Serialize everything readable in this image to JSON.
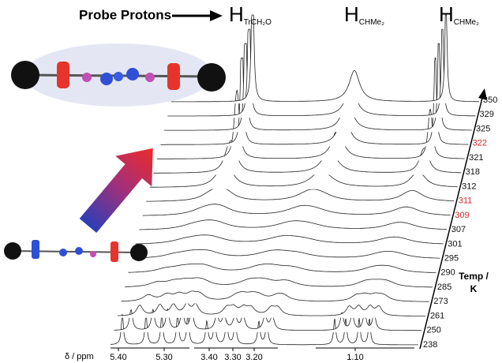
{
  "header": {
    "label": "Probe Protons",
    "peaks": [
      {
        "main": "H",
        "sub": "TrCH₂O"
      },
      {
        "main": "H",
        "sub": "CHMe₂"
      },
      {
        "main": "H",
        "sub": "CHMe₂"
      }
    ]
  },
  "temperature_axis": {
    "title": [
      "Temp /",
      "K"
    ],
    "values": [
      {
        "label": "350",
        "color": "#111111"
      },
      {
        "label": "329",
        "color": "#111111"
      },
      {
        "label": "325",
        "color": "#111111"
      },
      {
        "label": "322",
        "color": "#d7262b"
      },
      {
        "label": "321",
        "color": "#111111"
      },
      {
        "label": "318",
        "color": "#111111"
      },
      {
        "label": "312",
        "color": "#111111"
      },
      {
        "label": "311",
        "color": "#d7262b"
      },
      {
        "label": "309",
        "color": "#d7262b"
      },
      {
        "label": "307",
        "color": "#111111"
      },
      {
        "label": "301",
        "color": "#111111"
      },
      {
        "label": "295",
        "color": "#111111"
      },
      {
        "label": "290",
        "color": "#111111"
      },
      {
        "label": "285",
        "color": "#111111"
      },
      {
        "label": "273",
        "color": "#111111"
      },
      {
        "label": "261",
        "color": "#111111"
      },
      {
        "label": "250",
        "color": "#111111"
      },
      {
        "label": "238",
        "color": "#111111"
      }
    ]
  },
  "ppm_axis": {
    "title": "δ / ppm",
    "ticks": [
      "5.40",
      "5.30",
      "3.40",
      "3.30",
      "3.20",
      "1.10"
    ]
  }
}
